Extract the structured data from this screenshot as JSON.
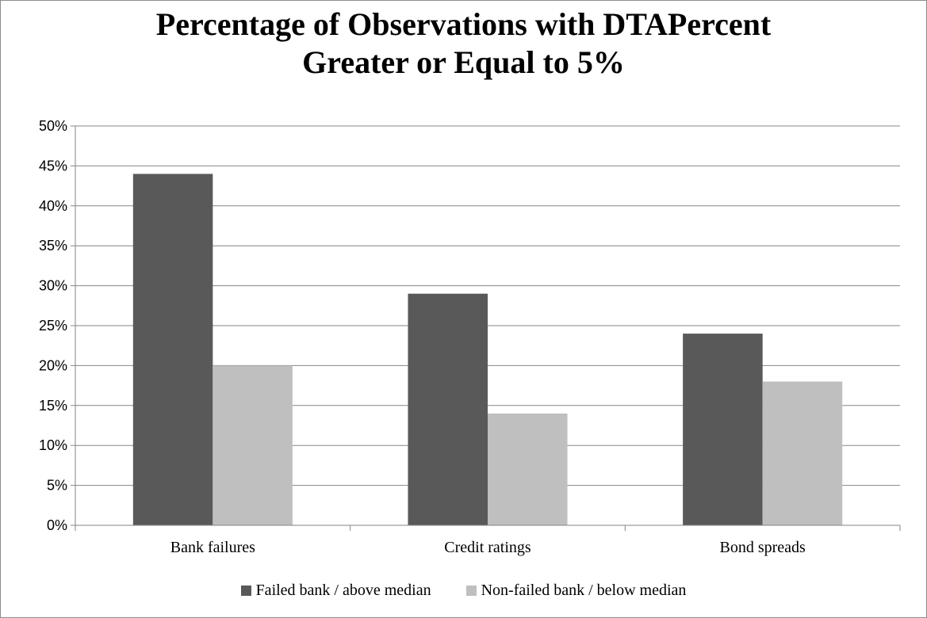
{
  "chart_data": {
    "type": "bar",
    "title_lines": [
      "Percentage of Observations with DTAPercent",
      "Greater or Equal to 5%"
    ],
    "categories": [
      "Bank failures",
      "Credit ratings",
      "Bond spreads"
    ],
    "series": [
      {
        "name": "Failed bank / above median",
        "color": "#595959",
        "values": [
          44,
          29,
          24
        ]
      },
      {
        "name": "Non-failed bank / below median",
        "color": "#bfbfbf",
        "values": [
          20,
          14,
          18
        ]
      }
    ],
    "ylim": [
      0,
      50
    ],
    "ytick_step": 5,
    "yticks": [
      "0%",
      "5%",
      "10%",
      "15%",
      "20%",
      "25%",
      "30%",
      "35%",
      "40%",
      "45%",
      "50%"
    ],
    "grid": true,
    "legend_position": "bottom"
  }
}
